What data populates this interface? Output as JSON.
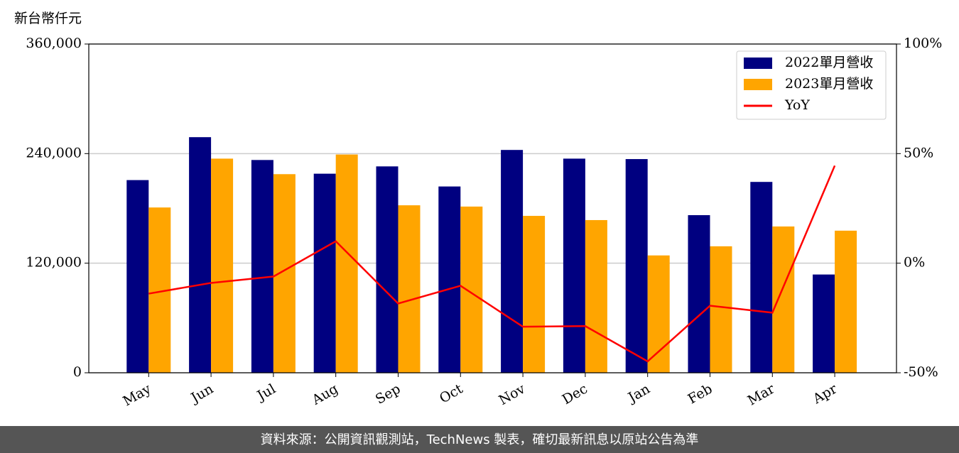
{
  "chart_data": {
    "type": "bar",
    "y_unit": "新台幣仟元",
    "categories": [
      "May",
      "Jun",
      "Jul",
      "Aug",
      "Sep",
      "Oct",
      "Nov",
      "Dec",
      "Jan",
      "Feb",
      "Mar",
      "Apr"
    ],
    "series": [
      {
        "name": "2022單月營收",
        "color": "#000080",
        "values": [
          211000,
          258000,
          233000,
          218000,
          226000,
          204000,
          244000,
          234500,
          234000,
          172600,
          209000,
          107600
        ]
      },
      {
        "name": "2023單月營收",
        "color": "#ffa500",
        "values": [
          181000,
          234500,
          217500,
          239000,
          183400,
          182000,
          171800,
          167200,
          128500,
          138500,
          160200,
          155600
        ]
      },
      {
        "name": "YoY",
        "color": "#ff0000",
        "type": "line",
        "axis": "y2",
        "values": [
          -13.9,
          -9.0,
          -6.1,
          10.0,
          -18.4,
          -10.3,
          -29.0,
          -28.7,
          -44.8,
          -19.4,
          -22.6,
          44.5
        ]
      }
    ],
    "ylim": [
      0,
      360000
    ],
    "yticks": [
      {
        "value": 0,
        "label": "0"
      },
      {
        "value": 120000,
        "label": "120,000"
      },
      {
        "value": 240000,
        "label": "240,000"
      },
      {
        "value": 360000,
        "label": "360,000"
      }
    ],
    "y2lim": [
      -50,
      100
    ],
    "y2ticks": [
      {
        "value": -50,
        "label": "-50%"
      },
      {
        "value": 0,
        "label": "0%"
      },
      {
        "value": 50,
        "label": "50%"
      },
      {
        "value": 100,
        "label": "100%"
      }
    ],
    "grid": true,
    "legend": "upper right",
    "source": "資料來源：公開資訊觀測站，TechNews 製表，確切最新訊息以原站公告為準"
  }
}
